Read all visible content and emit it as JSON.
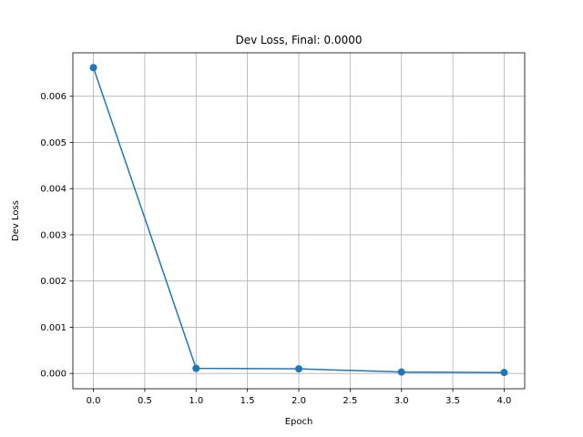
{
  "chart_data": {
    "type": "line",
    "title": "Dev Loss, Final: 0.0000",
    "xlabel": "Epoch",
    "ylabel": "Dev Loss",
    "xlim": [
      -0.2,
      4.2
    ],
    "ylim": [
      -0.000331,
      0.00694
    ],
    "xticks": [
      0.0,
      0.5,
      1.0,
      1.5,
      2.0,
      2.5,
      3.0,
      3.5,
      4.0
    ],
    "xtick_labels": [
      "0.0",
      "0.5",
      "1.0",
      "1.5",
      "2.0",
      "2.5",
      "3.0",
      "3.5",
      "4.0"
    ],
    "yticks": [
      0.0,
      0.001,
      0.002,
      0.003,
      0.004,
      0.005,
      0.006
    ],
    "ytick_labels": [
      "0.000",
      "0.001",
      "0.002",
      "0.003",
      "0.004",
      "0.005",
      "0.006"
    ],
    "grid": true,
    "legend": "none",
    "color": "#1f77b4",
    "series": [
      {
        "x": [
          0,
          1,
          2,
          3,
          4
        ],
        "values": [
          0.00662,
          0.00011,
          0.0001,
          3e-05,
          2e-05
        ],
        "marker": "circle"
      }
    ]
  }
}
